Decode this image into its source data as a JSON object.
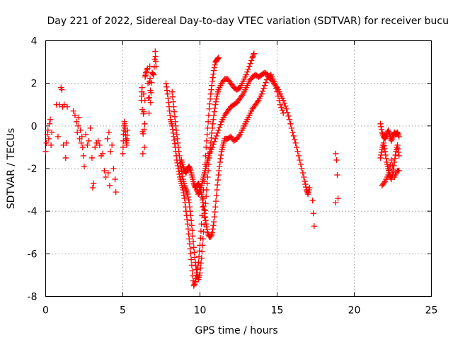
{
  "chart_data": {
    "type": "scatter",
    "title": "Day 221 of 2022, Sidereal Day-to-day VTEC variation (SDTVAR) for receiver bucu",
    "xlabel": "GPS time / hours",
    "ylabel": "SDTVAR / TECUs",
    "xlim": [
      0,
      25
    ],
    "ylim": [
      -8,
      4
    ],
    "x_ticks": [
      0,
      5,
      10,
      15,
      20,
      25
    ],
    "x_tick_labels": [
      "0",
      "5",
      "10",
      "15",
      "20",
      "25"
    ],
    "y_ticks": [
      -8,
      -6,
      -4,
      -2,
      0,
      2,
      4
    ],
    "y_tick_labels": [
      "-8",
      "-6",
      "-4",
      "-2",
      "0",
      "2",
      "4"
    ],
    "grid": true,
    "marker": "+",
    "color": "#ff0000",
    "series": [
      {
        "name": "scattered-early",
        "points": [
          [
            0.0,
            -1.2
          ],
          [
            0.05,
            -0.8
          ],
          [
            0.1,
            -0.4
          ],
          [
            0.15,
            -0.2
          ],
          [
            0.2,
            -0.6
          ],
          [
            0.25,
            0.1
          ],
          [
            0.3,
            0.3
          ],
          [
            0.35,
            -0.9
          ],
          [
            0.4,
            -0.3
          ],
          [
            0.7,
            1.0
          ],
          [
            0.8,
            -0.5
          ],
          [
            0.9,
            1.0
          ],
          [
            1.0,
            1.8
          ],
          [
            1.05,
            1.7
          ],
          [
            1.1,
            0.9
          ],
          [
            1.15,
            -0.9
          ],
          [
            1.2,
            1.0
          ],
          [
            1.3,
            -1.5
          ],
          [
            1.35,
            -0.8
          ],
          [
            1.4,
            0.9
          ],
          [
            1.8,
            0.7
          ],
          [
            1.9,
            0.5
          ],
          [
            2.0,
            0.2
          ],
          [
            2.05,
            -0.3
          ],
          [
            2.1,
            0.0
          ],
          [
            2.15,
            0.4
          ],
          [
            2.2,
            -0.6
          ],
          [
            2.25,
            -0.2
          ],
          [
            2.3,
            -0.8
          ],
          [
            2.35,
            -0.5
          ],
          [
            2.4,
            -1.0
          ],
          [
            2.45,
            -1.4
          ],
          [
            2.5,
            -1.9
          ],
          [
            2.6,
            -0.4
          ],
          [
            2.7,
            -0.9
          ],
          [
            2.8,
            -0.7
          ],
          [
            2.9,
            -0.1
          ],
          [
            3.0,
            -1.5
          ],
          [
            3.05,
            -2.9
          ],
          [
            3.1,
            -2.7
          ],
          [
            3.2,
            -1.0
          ],
          [
            3.3,
            -0.8
          ],
          [
            3.4,
            -0.7
          ],
          [
            3.5,
            -0.9
          ],
          [
            3.6,
            -1.4
          ],
          [
            3.7,
            -1.3
          ],
          [
            3.8,
            -2.1
          ],
          [
            3.9,
            -2.4
          ],
          [
            4.0,
            -0.6
          ],
          [
            4.05,
            -2.2
          ],
          [
            4.1,
            -0.3
          ],
          [
            4.15,
            -2.8
          ],
          [
            4.2,
            -1.2
          ],
          [
            4.3,
            -0.9
          ],
          [
            4.4,
            -2.0
          ],
          [
            4.5,
            -2.5
          ],
          [
            4.55,
            -3.1
          ]
        ]
      },
      {
        "name": "arc-5to7",
        "points": [
          [
            5.0,
            -1.3
          ],
          [
            5.05,
            -0.4
          ],
          [
            5.1,
            0.2
          ],
          [
            5.15,
            -0.1
          ],
          [
            5.2,
            -0.6
          ],
          [
            5.25,
            -0.9
          ],
          [
            5.3,
            -0.2
          ],
          [
            6.2,
            1.2
          ],
          [
            6.25,
            1.8
          ],
          [
            6.3,
            -1.3
          ],
          [
            6.35,
            1.5
          ],
          [
            6.4,
            -1.0
          ],
          [
            6.45,
            2.3
          ],
          [
            6.5,
            2.5
          ],
          [
            6.6,
            2.7
          ],
          [
            6.7,
            0.6
          ],
          [
            6.75,
            2.8
          ],
          [
            6.8,
            1.1
          ],
          [
            6.9,
            2.5
          ],
          [
            7.0,
            2.4
          ],
          [
            7.1,
            3.5
          ],
          [
            7.15,
            2.8
          ]
        ]
      },
      {
        "name": "main-track-a",
        "points": [
          [
            7.8,
            2.0
          ],
          [
            7.9,
            1.5
          ],
          [
            8.0,
            0.9
          ],
          [
            8.1,
            0.3
          ],
          [
            8.2,
            0.0
          ],
          [
            8.3,
            -0.5
          ],
          [
            8.4,
            -1.0
          ],
          [
            8.5,
            -1.6
          ],
          [
            8.6,
            -2.0
          ],
          [
            8.7,
            -2.4
          ],
          [
            8.8,
            -2.7
          ],
          [
            8.9,
            -3.0
          ],
          [
            9.0,
            -3.4
          ],
          [
            9.1,
            -4.0
          ],
          [
            9.2,
            -4.6
          ],
          [
            9.3,
            -5.3
          ],
          [
            9.4,
            -6.0
          ],
          [
            9.5,
            -6.8
          ],
          [
            9.6,
            -7.5
          ],
          [
            9.7,
            -7.3
          ],
          [
            9.8,
            -6.9
          ],
          [
            9.9,
            -6.4
          ],
          [
            10.0,
            -5.6
          ],
          [
            10.1,
            -4.6
          ],
          [
            10.2,
            -3.4
          ],
          [
            10.3,
            -2.2
          ],
          [
            10.4,
            -1.0
          ],
          [
            10.5,
            -0.1
          ],
          [
            10.6,
            0.8
          ],
          [
            10.7,
            1.5
          ],
          [
            10.8,
            2.1
          ],
          [
            10.9,
            2.6
          ],
          [
            11.0,
            3.0
          ],
          [
            11.1,
            3.1
          ],
          [
            11.2,
            3.2
          ]
        ]
      },
      {
        "name": "main-track-b",
        "points": [
          [
            8.2,
            1.6
          ],
          [
            8.3,
            0.9
          ],
          [
            8.4,
            0.2
          ],
          [
            8.5,
            -0.4
          ],
          [
            8.6,
            -1.0
          ],
          [
            8.7,
            -1.6
          ],
          [
            8.8,
            -2.1
          ],
          [
            8.9,
            -2.5
          ],
          [
            9.0,
            -2.8
          ],
          [
            9.1,
            -3.0
          ],
          [
            9.2,
            -3.2
          ],
          [
            9.3,
            -3.6
          ],
          [
            9.4,
            -4.2
          ],
          [
            9.5,
            -4.9
          ],
          [
            9.6,
            -5.7
          ],
          [
            9.7,
            -6.4
          ],
          [
            9.8,
            -6.9
          ],
          [
            9.9,
            -7.2
          ],
          [
            10.0,
            -6.9
          ],
          [
            10.1,
            -6.2
          ],
          [
            10.2,
            -5.3
          ],
          [
            10.3,
            -4.3
          ],
          [
            10.4,
            -3.3
          ],
          [
            10.5,
            -2.4
          ],
          [
            10.6,
            -1.5
          ],
          [
            10.7,
            -0.8
          ],
          [
            10.8,
            -0.1
          ],
          [
            10.9,
            0.5
          ],
          [
            11.0,
            1.0
          ],
          [
            11.1,
            1.4
          ],
          [
            11.2,
            1.7
          ],
          [
            11.4,
            2.0
          ],
          [
            11.6,
            2.2
          ],
          [
            11.8,
            2.2
          ],
          [
            12.0,
            2.0
          ],
          [
            12.2,
            1.8
          ],
          [
            12.4,
            1.7
          ],
          [
            12.6,
            1.8
          ],
          [
            12.8,
            2.1
          ],
          [
            13.0,
            2.4
          ],
          [
            13.2,
            2.8
          ],
          [
            13.4,
            3.2
          ],
          [
            13.5,
            3.4
          ]
        ]
      },
      {
        "name": "main-track-c",
        "points": [
          [
            8.8,
            -1.6
          ],
          [
            8.9,
            -1.9
          ],
          [
            9.0,
            -2.1
          ],
          [
            9.1,
            -2.2
          ],
          [
            9.2,
            -2.0
          ],
          [
            9.3,
            -1.9
          ],
          [
            9.4,
            -2.1
          ],
          [
            9.5,
            -2.4
          ],
          [
            9.6,
            -2.7
          ],
          [
            9.7,
            -2.9
          ],
          [
            9.8,
            -2.8
          ],
          [
            9.9,
            -2.7
          ],
          [
            10.0,
            -2.9
          ],
          [
            10.1,
            -3.2
          ],
          [
            10.2,
            -3.6
          ],
          [
            10.3,
            -4.1
          ],
          [
            10.4,
            -4.6
          ],
          [
            10.5,
            -5.0
          ],
          [
            10.6,
            -5.2
          ],
          [
            10.7,
            -5.2
          ],
          [
            10.8,
            -5.0
          ],
          [
            10.9,
            -4.5
          ],
          [
            11.0,
            -3.8
          ],
          [
            11.1,
            -3.0
          ],
          [
            11.2,
            -2.3
          ],
          [
            11.3,
            -1.7
          ],
          [
            11.4,
            -1.2
          ],
          [
            11.5,
            -0.9
          ],
          [
            11.6,
            -0.6
          ],
          [
            11.8,
            -0.6
          ],
          [
            12.0,
            -0.5
          ],
          [
            12.2,
            -0.7
          ],
          [
            12.4,
            -0.6
          ],
          [
            12.6,
            -0.4
          ],
          [
            12.8,
            -0.1
          ],
          [
            13.0,
            0.2
          ],
          [
            13.2,
            0.5
          ],
          [
            13.4,
            0.8
          ],
          [
            13.6,
            1.0
          ],
          [
            13.8,
            1.2
          ],
          [
            14.0,
            1.5
          ],
          [
            14.2,
            1.9
          ],
          [
            14.4,
            2.3
          ],
          [
            14.6,
            2.4
          ],
          [
            14.8,
            2.1
          ],
          [
            15.0,
            1.6
          ],
          [
            15.2,
            1.0
          ],
          [
            15.4,
            0.6
          ]
        ]
      },
      {
        "name": "main-track-d",
        "points": [
          [
            9.8,
            -3.0
          ],
          [
            9.9,
            -3.2
          ],
          [
            10.0,
            -3.1
          ],
          [
            10.1,
            -2.8
          ],
          [
            10.2,
            -2.5
          ],
          [
            10.3,
            -2.2
          ],
          [
            10.4,
            -1.9
          ],
          [
            10.5,
            -1.6
          ],
          [
            10.6,
            -1.3
          ],
          [
            10.8,
            -1.0
          ],
          [
            11.0,
            -0.6
          ],
          [
            11.2,
            -0.2
          ],
          [
            11.4,
            0.2
          ],
          [
            11.6,
            0.5
          ],
          [
            11.8,
            0.7
          ],
          [
            12.0,
            0.9
          ],
          [
            12.2,
            1.0
          ],
          [
            12.4,
            1.1
          ],
          [
            12.6,
            1.3
          ],
          [
            12.8,
            1.5
          ],
          [
            13.0,
            1.8
          ],
          [
            13.2,
            2.1
          ],
          [
            13.4,
            2.3
          ],
          [
            13.6,
            2.4
          ],
          [
            13.8,
            2.3
          ],
          [
            14.0,
            2.4
          ],
          [
            14.2,
            2.5
          ],
          [
            14.4,
            2.4
          ],
          [
            14.6,
            2.2
          ],
          [
            14.8,
            2.0
          ],
          [
            15.0,
            1.8
          ],
          [
            15.2,
            1.5
          ],
          [
            15.4,
            1.2
          ],
          [
            15.6,
            0.8
          ],
          [
            15.8,
            0.3
          ],
          [
            16.0,
            -0.3
          ],
          [
            16.2,
            -0.8
          ],
          [
            16.4,
            -1.4
          ],
          [
            16.6,
            -2.0
          ],
          [
            16.8,
            -2.6
          ],
          [
            16.9,
            -3.0
          ],
          [
            17.0,
            -3.2
          ],
          [
            17.1,
            -2.9
          ]
        ]
      },
      {
        "name": "late-sparse",
        "points": [
          [
            17.3,
            -3.5
          ],
          [
            17.35,
            -4.1
          ],
          [
            17.4,
            -4.7
          ],
          [
            18.8,
            -1.3
          ],
          [
            18.85,
            -1.6
          ],
          [
            18.9,
            -2.3
          ],
          [
            18.95,
            -3.4
          ],
          [
            18.8,
            -3.6
          ]
        ]
      },
      {
        "name": "evening-cluster",
        "points": [
          [
            21.7,
            0.1
          ],
          [
            21.8,
            -0.3
          ],
          [
            21.9,
            -0.5
          ],
          [
            22.0,
            -0.6
          ],
          [
            22.1,
            -0.4
          ],
          [
            22.2,
            -0.2
          ],
          [
            22.3,
            -0.4
          ],
          [
            22.4,
            -0.7
          ],
          [
            22.5,
            -0.5
          ],
          [
            22.6,
            -0.3
          ],
          [
            22.7,
            -0.4
          ],
          [
            22.8,
            -0.3
          ],
          [
            22.9,
            -0.5
          ],
          [
            21.7,
            -1.5
          ],
          [
            21.8,
            -1.1
          ],
          [
            21.9,
            -0.8
          ],
          [
            22.0,
            -1.2
          ],
          [
            22.1,
            -1.7
          ],
          [
            22.2,
            -2.0
          ],
          [
            22.3,
            -2.3
          ],
          [
            22.4,
            -2.5
          ],
          [
            22.5,
            -2.2
          ],
          [
            22.6,
            -1.7
          ],
          [
            22.7,
            -1.2
          ],
          [
            22.8,
            -0.9
          ],
          [
            22.9,
            -1.4
          ],
          [
            21.8,
            -2.8
          ],
          [
            22.0,
            -2.6
          ],
          [
            22.2,
            -2.3
          ],
          [
            22.4,
            -1.6
          ],
          [
            22.6,
            -2.4
          ],
          [
            22.8,
            -2.1
          ],
          [
            22.9,
            -2.1
          ]
        ]
      }
    ]
  }
}
